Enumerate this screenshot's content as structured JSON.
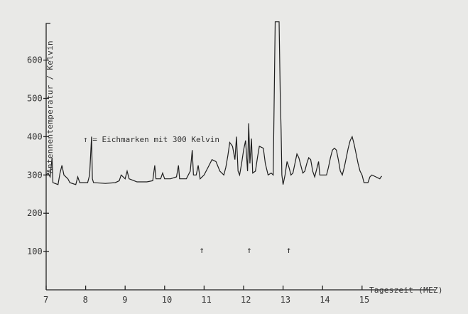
{
  "chart_data": {
    "type": "line",
    "xlabel": "Tageszeit (MEZ)",
    "ylabel": "Antennentemperatur / Kelvin",
    "legend_text": "↑ = Eichmarken mit 300 Kelvin",
    "xlim": [
      7,
      15.8
    ],
    "ylim": [
      0,
      700
    ],
    "x_ticks": [
      7,
      8,
      9,
      10,
      11,
      12,
      13,
      14,
      15
    ],
    "y_ticks": [
      100,
      200,
      300,
      400,
      500,
      600
    ],
    "grid": false,
    "calibration_marks": [
      {
        "x": 10.95,
        "label": "↑"
      },
      {
        "x": 12.15,
        "label": "↑"
      },
      {
        "x": 13.15,
        "label": "↑"
      }
    ],
    "series": [
      {
        "points": [
          [
            7.0,
            300
          ],
          [
            7.05,
            305
          ],
          [
            7.1,
            295
          ],
          [
            7.15,
            345
          ],
          [
            7.17,
            280
          ],
          [
            7.3,
            275
          ],
          [
            7.35,
            305
          ],
          [
            7.4,
            325
          ],
          [
            7.45,
            300
          ],
          [
            7.55,
            290
          ],
          [
            7.6,
            280
          ],
          [
            7.75,
            275
          ],
          [
            7.8,
            295
          ],
          [
            7.85,
            280
          ],
          [
            8.05,
            280
          ],
          [
            8.1,
            300
          ],
          [
            8.15,
            400
          ],
          [
            8.17,
            290
          ],
          [
            8.2,
            280
          ],
          [
            8.5,
            278
          ],
          [
            8.75,
            280
          ],
          [
            8.85,
            285
          ],
          [
            8.9,
            300
          ],
          [
            9.0,
            290
          ],
          [
            9.05,
            310
          ],
          [
            9.1,
            290
          ],
          [
            9.3,
            282
          ],
          [
            9.55,
            282
          ],
          [
            9.7,
            285
          ],
          [
            9.75,
            325
          ],
          [
            9.78,
            290
          ],
          [
            9.9,
            290
          ],
          [
            9.95,
            305
          ],
          [
            10.0,
            290
          ],
          [
            10.15,
            290
          ],
          [
            10.3,
            295
          ],
          [
            10.35,
            325
          ],
          [
            10.38,
            290
          ],
          [
            10.55,
            290
          ],
          [
            10.65,
            310
          ],
          [
            10.7,
            365
          ],
          [
            10.73,
            300
          ],
          [
            10.8,
            300
          ],
          [
            10.85,
            325
          ],
          [
            10.9,
            290
          ],
          [
            11.0,
            300
          ],
          [
            11.1,
            320
          ],
          [
            11.2,
            340
          ],
          [
            11.3,
            335
          ],
          [
            11.4,
            310
          ],
          [
            11.5,
            300
          ],
          [
            11.55,
            320
          ],
          [
            11.6,
            350
          ],
          [
            11.65,
            385
          ],
          [
            11.72,
            375
          ],
          [
            11.78,
            340
          ],
          [
            11.82,
            400
          ],
          [
            11.86,
            310
          ],
          [
            11.9,
            300
          ],
          [
            11.95,
            330
          ],
          [
            12.0,
            365
          ],
          [
            12.05,
            390
          ],
          [
            12.1,
            310
          ],
          [
            12.13,
            435
          ],
          [
            12.16,
            330
          ],
          [
            12.2,
            395
          ],
          [
            12.23,
            305
          ],
          [
            12.3,
            310
          ],
          [
            12.35,
            345
          ],
          [
            12.4,
            375
          ],
          [
            12.5,
            370
          ],
          [
            12.55,
            330
          ],
          [
            12.62,
            300
          ],
          [
            12.7,
            305
          ],
          [
            12.75,
            300
          ],
          [
            12.8,
            700
          ],
          [
            12.9,
            700
          ],
          [
            12.93,
            500
          ],
          [
            12.95,
            420
          ],
          [
            12.97,
            300
          ],
          [
            13.0,
            275
          ],
          [
            13.05,
            300
          ],
          [
            13.1,
            335
          ],
          [
            13.15,
            320
          ],
          [
            13.2,
            300
          ],
          [
            13.25,
            305
          ],
          [
            13.3,
            330
          ],
          [
            13.35,
            355
          ],
          [
            13.4,
            345
          ],
          [
            13.45,
            325
          ],
          [
            13.5,
            305
          ],
          [
            13.55,
            310
          ],
          [
            13.6,
            330
          ],
          [
            13.65,
            345
          ],
          [
            13.7,
            340
          ],
          [
            13.75,
            310
          ],
          [
            13.8,
            295
          ],
          [
            13.85,
            315
          ],
          [
            13.9,
            335
          ],
          [
            13.93,
            300
          ],
          [
            14.1,
            300
          ],
          [
            14.15,
            320
          ],
          [
            14.2,
            345
          ],
          [
            14.25,
            365
          ],
          [
            14.3,
            370
          ],
          [
            14.35,
            365
          ],
          [
            14.4,
            340
          ],
          [
            14.45,
            310
          ],
          [
            14.5,
            300
          ],
          [
            14.55,
            320
          ],
          [
            14.6,
            345
          ],
          [
            14.65,
            370
          ],
          [
            14.7,
            390
          ],
          [
            14.75,
            400
          ],
          [
            14.8,
            380
          ],
          [
            14.85,
            355
          ],
          [
            14.9,
            330
          ],
          [
            14.95,
            310
          ],
          [
            15.0,
            300
          ],
          [
            15.05,
            280
          ],
          [
            15.15,
            280
          ],
          [
            15.2,
            295
          ],
          [
            15.25,
            300
          ],
          [
            15.35,
            295
          ],
          [
            15.45,
            290
          ],
          [
            15.48,
            295
          ],
          [
            15.5,
            297
          ]
        ]
      }
    ]
  }
}
